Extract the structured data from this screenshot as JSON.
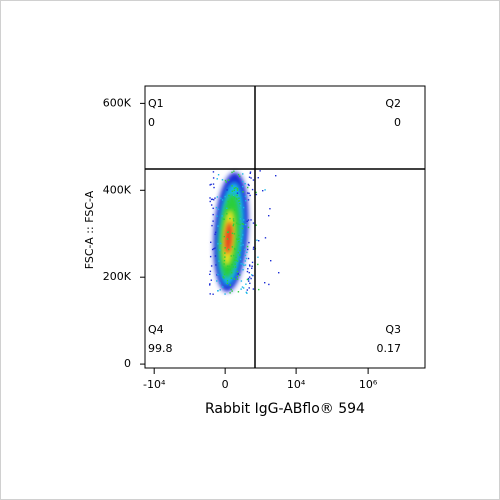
{
  "chart_data": {
    "type": "scatter",
    "x_label": "Rabbit IgG-ABflo® 594",
    "y_label": "FSC-A :: FSC-A",
    "xscale": "arcsinh",
    "xlim": [
      -18000,
      38000000
    ],
    "xticks": [
      {
        "value": -10000,
        "label": "-10⁴"
      },
      0,
      {
        "value": 10000,
        "label": "10⁴"
      },
      {
        "value": 1000000,
        "label": "10⁶"
      }
    ],
    "ylim": [
      -9000,
      640000
    ],
    "yticks": [
      0,
      {
        "value": 200000,
        "label": "200K"
      },
      {
        "value": 400000,
        "label": "400K"
      },
      {
        "value": 600000,
        "label": "600K"
      }
    ],
    "quadrants": [
      {
        "name": "Q1",
        "value": 0
      },
      {
        "name": "Q2",
        "value": 0
      },
      {
        "name": "Q3",
        "value": 0.17
      },
      {
        "name": "Q4",
        "value": 99.8
      }
    ]
  }
}
